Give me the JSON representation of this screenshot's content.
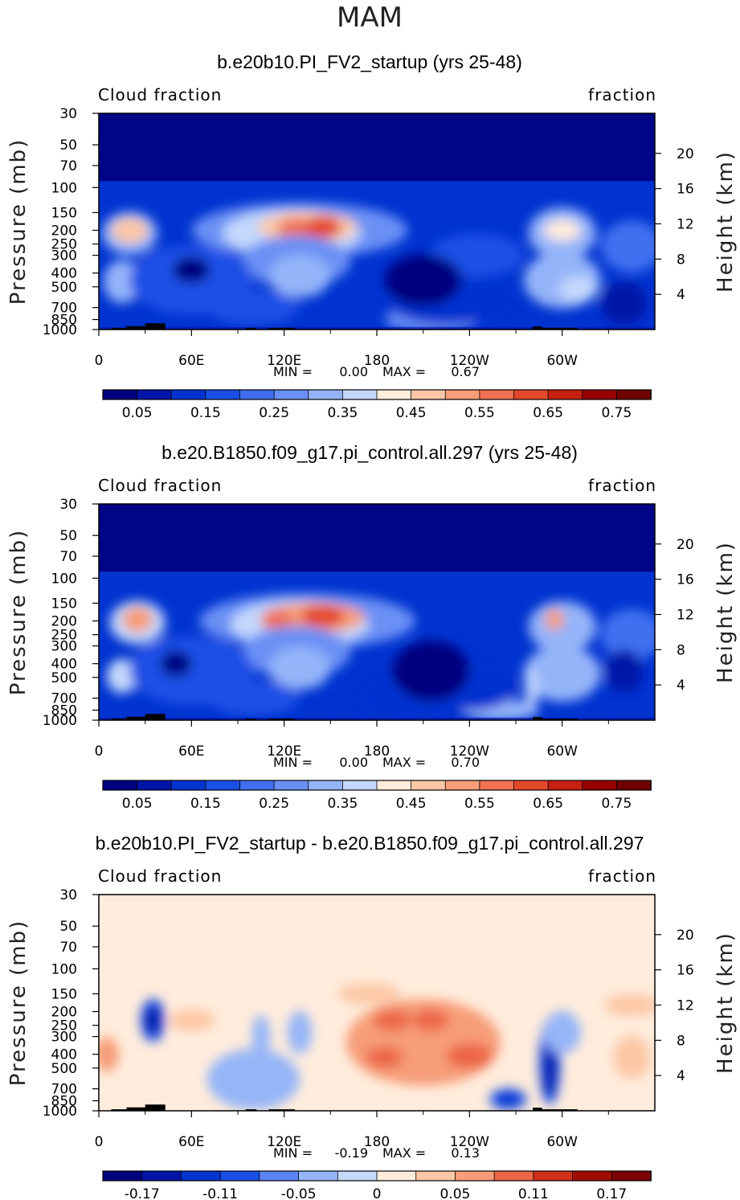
{
  "figure_title": "MAM",
  "colors": {
    "main_scale": [
      "#00007f",
      "#0015a8",
      "#0033d0",
      "#1a4fe6",
      "#3f6ff0",
      "#6a90f5",
      "#94b4f9",
      "#c3d8fc",
      "#ffecdc",
      "#fcc7a6",
      "#f79d78",
      "#f07252",
      "#e4482a",
      "#c62010",
      "#960000",
      "#700000"
    ],
    "diff_scale": [
      "#00007f",
      "#0015a8",
      "#0033d0",
      "#1a4fe6",
      "#5a84f2",
      "#95b5f8",
      "#c4d9fc",
      "#ffecdc",
      "#fcc7a6",
      "#f79d78",
      "#ec6646",
      "#d0301a",
      "#a30a00",
      "#7a0000"
    ],
    "terrain": "#000000"
  },
  "chart_data": [
    {
      "type": "heatmap",
      "title": "b.e20b10.PI_FV2_startup (yrs 25-48)",
      "left_label": "Cloud fraction",
      "right_label": "fraction",
      "ylabel": "Pressure (mb)",
      "ylabel_right": "Height (km)",
      "x_ticks": [
        "0",
        "60E",
        "120E",
        "180",
        "120W",
        "60W"
      ],
      "y_ticks": [
        "30",
        "50",
        "70",
        "100",
        "150",
        "200",
        "250",
        "300",
        "400",
        "500",
        "700",
        "850",
        "1000"
      ],
      "height_ticks": [
        "20",
        "16",
        "12",
        "8",
        "4"
      ],
      "stats": {
        "min_label": "MIN =",
        "min": "0.00",
        "max_label": "MAX =",
        "max": "0.67"
      },
      "colorbar_labels": [
        "0.05",
        "0.15",
        "0.25",
        "0.35",
        "0.45",
        "0.55",
        "0.65",
        "0.75"
      ],
      "levels": [
        0.05,
        0.1,
        0.15,
        0.2,
        0.25,
        0.3,
        0.35,
        0.4,
        0.45,
        0.5,
        0.55,
        0.6,
        0.65,
        0.7,
        0.75
      ],
      "field_features": [
        {
          "lon": 130,
          "p": 190,
          "value": 0.62,
          "region": "West Pacific upper troposphere"
        },
        {
          "lon": 20,
          "p": 200,
          "value": 0.5,
          "region": "Africa upper troposphere"
        },
        {
          "lon": 295,
          "p": 210,
          "value": 0.4,
          "region": "South America upper troposphere"
        },
        {
          "lon": 210,
          "p": 500,
          "value": 0.05,
          "region": "Central Pacific mid troposphere"
        }
      ]
    },
    {
      "type": "heatmap",
      "title": "b.e20.B1850.f09_g17.pi_control.all.297 (yrs 25-48)",
      "left_label": "Cloud fraction",
      "right_label": "fraction",
      "ylabel": "Pressure (mb)",
      "ylabel_right": "Height (km)",
      "x_ticks": [
        "0",
        "60E",
        "120E",
        "180",
        "120W",
        "60W"
      ],
      "y_ticks": [
        "30",
        "50",
        "70",
        "100",
        "150",
        "200",
        "250",
        "300",
        "400",
        "500",
        "700",
        "850",
        "1000"
      ],
      "height_ticks": [
        "20",
        "16",
        "12",
        "8",
        "4"
      ],
      "stats": {
        "min_label": "MIN =",
        "min": "0.00",
        "max_label": "MAX =",
        "max": "0.70"
      },
      "colorbar_labels": [
        "0.05",
        "0.15",
        "0.25",
        "0.35",
        "0.45",
        "0.55",
        "0.65",
        "0.75"
      ],
      "levels": [
        0.05,
        0.1,
        0.15,
        0.2,
        0.25,
        0.3,
        0.35,
        0.4,
        0.45,
        0.5,
        0.55,
        0.6,
        0.65,
        0.7,
        0.75
      ],
      "field_features": [
        {
          "lon": 140,
          "p": 190,
          "value": 0.65,
          "region": "West Pacific upper troposphere"
        },
        {
          "lon": 25,
          "p": 200,
          "value": 0.55,
          "region": "Africa upper troposphere"
        },
        {
          "lon": 300,
          "p": 200,
          "value": 0.45,
          "region": "South America upper troposphere"
        },
        {
          "lon": 215,
          "p": 500,
          "value": 0.04,
          "region": "Central Pacific mid troposphere"
        }
      ]
    },
    {
      "type": "heatmap",
      "title": "b.e20b10.PI_FV2_startup - b.e20.B1850.f09_g17.pi_control.all.297",
      "left_label": "Cloud fraction",
      "right_label": "fraction",
      "ylabel": "Pressure (mb)",
      "ylabel_right": "Height (km)",
      "x_ticks": [
        "0",
        "60E",
        "120E",
        "180",
        "120W",
        "60W"
      ],
      "y_ticks": [
        "30",
        "50",
        "70",
        "100",
        "150",
        "200",
        "250",
        "300",
        "400",
        "500",
        "700",
        "850",
        "1000"
      ],
      "height_ticks": [
        "20",
        "16",
        "12",
        "8",
        "4"
      ],
      "stats": {
        "min_label": "MIN =",
        "min": "-0.19",
        "max_label": "MAX =",
        "max": "0.13"
      },
      "colorbar_labels": [
        "-0.17",
        "-0.11",
        "-0.05",
        "0",
        "0.05",
        "0.11",
        "0.17"
      ],
      "levels": [
        -0.2,
        -0.17,
        -0.14,
        -0.11,
        -0.08,
        -0.05,
        -0.02,
        0,
        0.02,
        0.05,
        0.08,
        0.11,
        0.14,
        0.17,
        0.2
      ],
      "field_features": [
        {
          "lon": 210,
          "p": 300,
          "value": 0.08,
          "region": "Central Pacific upper troposphere"
        },
        {
          "lon": 35,
          "p": 230,
          "value": -0.12,
          "region": "Africa upper troposphere"
        },
        {
          "lon": 295,
          "p": 500,
          "value": -0.15,
          "region": "South America column"
        },
        {
          "lon": 265,
          "p": 850,
          "value": -0.1,
          "region": "East Pacific boundary layer"
        }
      ]
    }
  ]
}
